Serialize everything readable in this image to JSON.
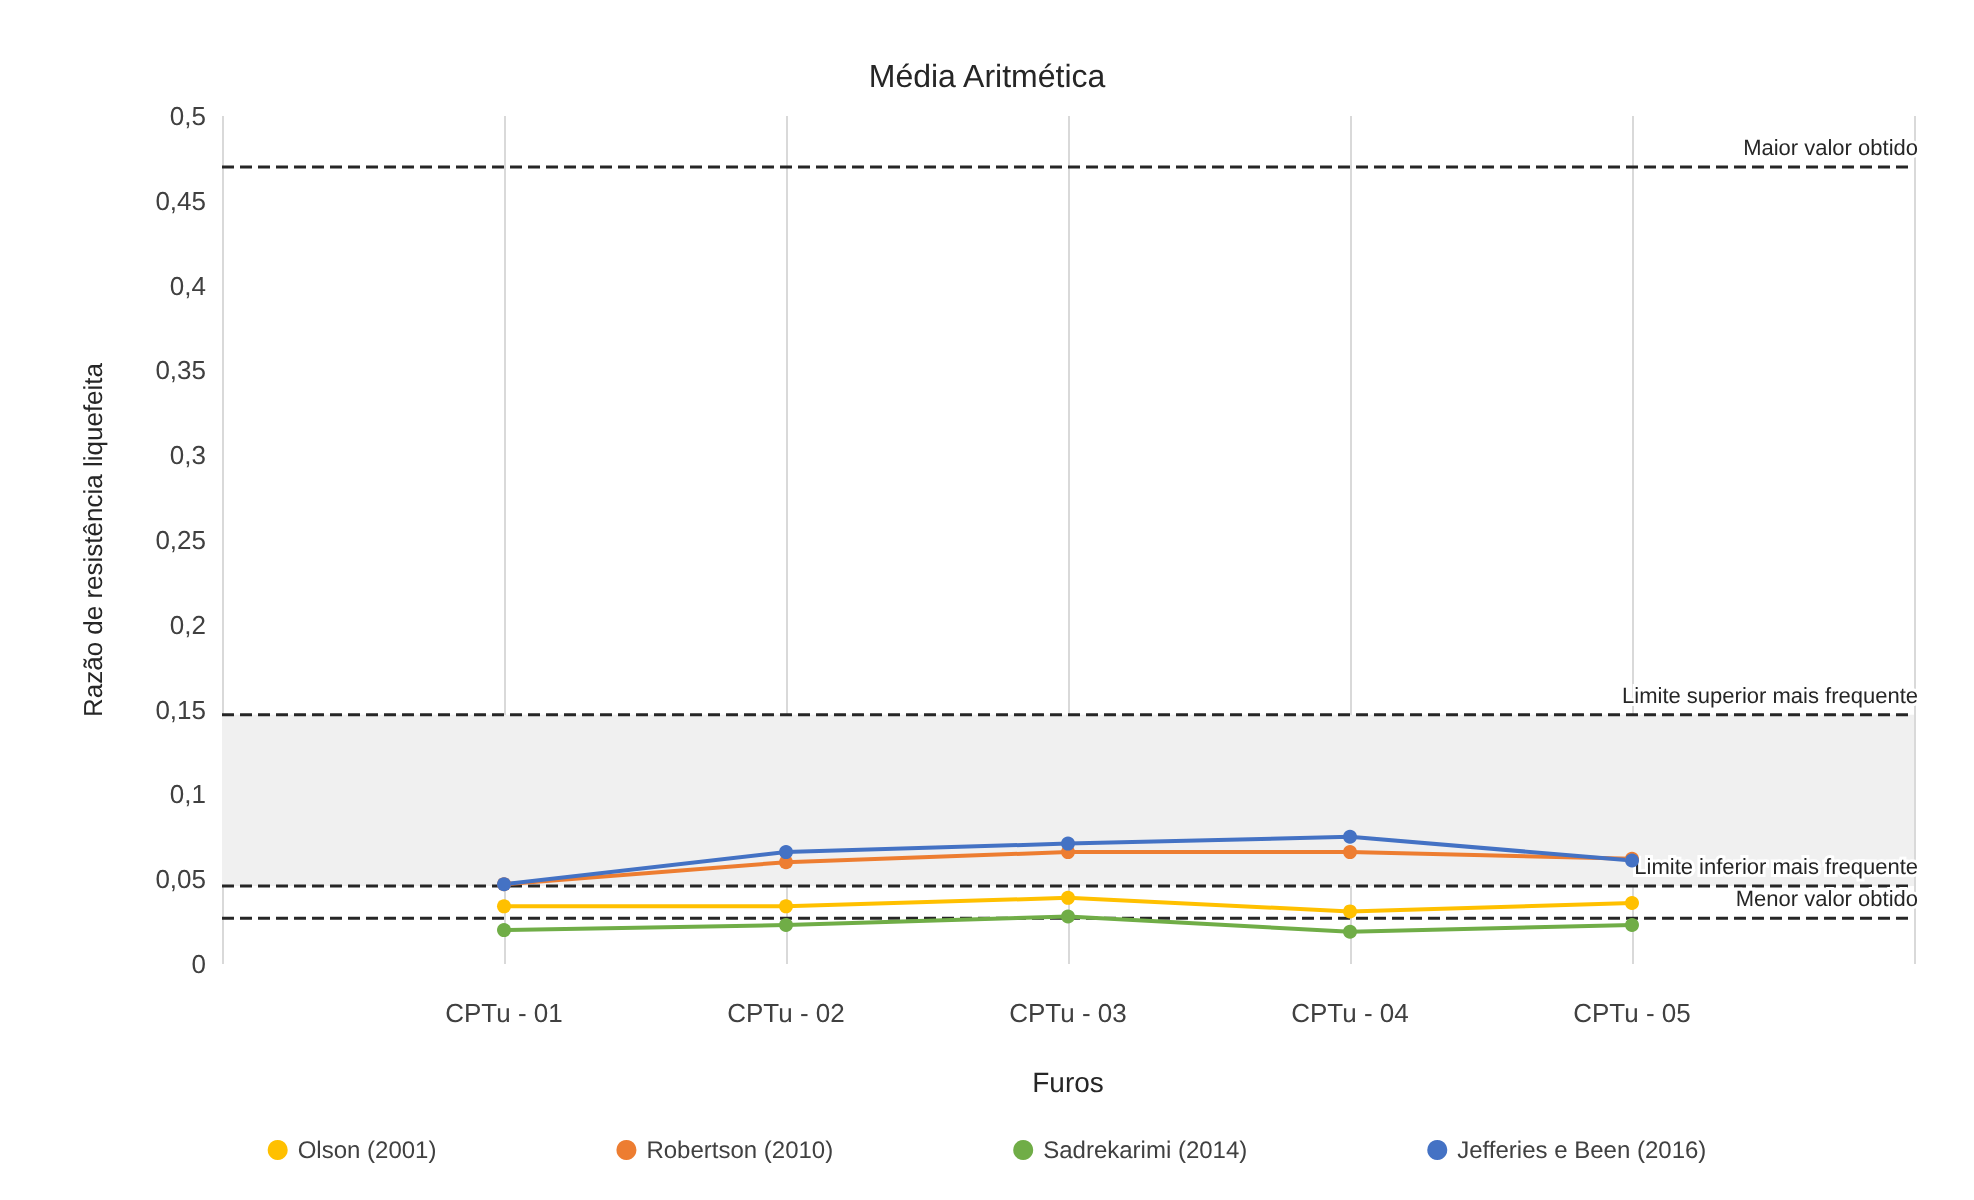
{
  "chart_data": {
    "type": "line",
    "title": "Média Aritmética",
    "xlabel": "Furos",
    "ylabel": "Razão de resistência liquefeita",
    "categories": [
      null,
      "CPTu - 01",
      "CPTu - 02",
      "CPTu - 03",
      "CPTu - 04",
      "CPTu - 05",
      null
    ],
    "series": [
      {
        "name": "Olson (2001)",
        "color": "#ffc000",
        "values": [
          null,
          0.034,
          0.034,
          0.039,
          0.031,
          0.036,
          null
        ]
      },
      {
        "name": "Robertson (2010)",
        "color": "#ed7d31",
        "values": [
          null,
          0.047,
          0.06,
          0.066,
          0.066,
          0.062,
          null
        ]
      },
      {
        "name": "Sadrekarimi (2014)",
        "color": "#70ad47",
        "values": [
          null,
          0.02,
          0.023,
          0.028,
          0.019,
          0.023,
          null
        ]
      },
      {
        "name": "Jefferies e Been (2016)",
        "color": "#4472c4",
        "values": [
          null,
          0.047,
          0.066,
          0.071,
          0.075,
          0.061,
          null
        ]
      }
    ],
    "ylim": [
      0,
      0.5
    ],
    "yticks": [
      {
        "value": 0,
        "label": "0"
      },
      {
        "value": 0.05,
        "label": "0,05"
      },
      {
        "value": 0.1,
        "label": "0,1"
      },
      {
        "value": 0.15,
        "label": "0,15"
      },
      {
        "value": 0.2,
        "label": "0,2"
      },
      {
        "value": 0.25,
        "label": "0,25"
      },
      {
        "value": 0.3,
        "label": "0,3"
      },
      {
        "value": 0.35,
        "label": "0,35"
      },
      {
        "value": 0.4,
        "label": "0,4"
      },
      {
        "value": 0.45,
        "label": "0,45"
      },
      {
        "value": 0.5,
        "label": "0,5"
      }
    ],
    "ref_lines": [
      {
        "axis": "y",
        "value": 0.47,
        "label": "Maior valor obtido",
        "color": "#262626",
        "line_style": "dashed"
      },
      {
        "axis": "y",
        "value": 0.147,
        "label": "Limite superior mais frequente",
        "color": "#262626",
        "line_style": "dashed"
      },
      {
        "axis": "y",
        "value": 0.046,
        "label": "Limite inferior mais frequente",
        "color": "#262626",
        "line_style": "dashed"
      },
      {
        "axis": "y",
        "value": 0.027,
        "label": "Menor valor obtido",
        "color": "#262626",
        "line_style": "dashed"
      }
    ],
    "bands": [
      {
        "axis": "y",
        "from": 0.046,
        "to": 0.147,
        "color": "#f0f0f0"
      }
    ],
    "grid": "x",
    "legend": "bottom",
    "marker": "circle",
    "line_style": "solid"
  }
}
